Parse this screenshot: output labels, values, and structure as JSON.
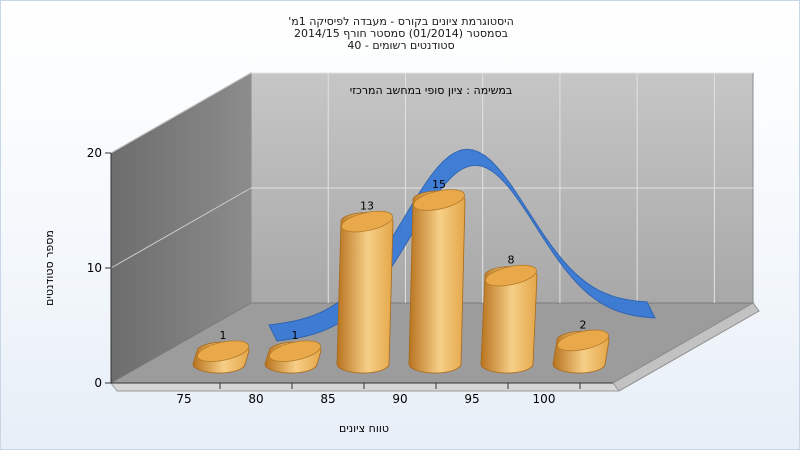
{
  "chart_data": {
    "type": "bar",
    "title_lines": [
      "היסטוגרמת ציונים בקורס - מעבדה לפיסיקה 1מ'",
      "בסמסטר  (01/2014)  סמסטר חורף 2014/15",
      "סטודנטים רשומים - 40"
    ],
    "annotation": "במשימה : ציון סופי במחשב המרכזי",
    "xlabel": "טווח ציונים",
    "ylabel": "מספר סטודנטים",
    "categories": [
      "75",
      "80",
      "85",
      "90",
      "95",
      "100"
    ],
    "values": [
      1,
      1,
      13,
      15,
      8,
      2
    ],
    "data_labels": [
      "1",
      "1",
      "13",
      "15",
      "8",
      "2"
    ],
    "ylim": [
      0,
      20
    ],
    "yticks": [
      0,
      10,
      20
    ],
    "ytick_labels": [
      "0",
      "10",
      "20"
    ],
    "grid": true,
    "legend": "none",
    "overlay_curve": "normal-distribution ribbon",
    "colors": {
      "bar_light": "#f6cf86",
      "bar_mid": "#e4a64a",
      "bar_dark": "#b8741f",
      "bar_top": "#e9a94a",
      "curve": "#3a7ad6",
      "back_wall": "#b4b4b4",
      "side_wall": "#7e7e7e",
      "floor": "#9c9c9c"
    }
  }
}
